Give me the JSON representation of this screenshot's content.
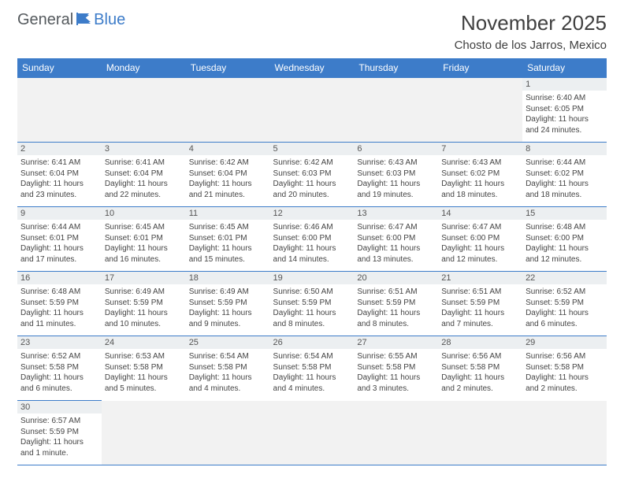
{
  "logo": {
    "general": "General",
    "blue": "Blue"
  },
  "title": "November 2025",
  "location": "Chosto de los Jarros, Mexico",
  "colors": {
    "header_bg": "#3d7cc9",
    "header_text": "#ffffff",
    "daynum_bg": "#eceff1",
    "cell_border": "#3d7cc9",
    "empty_bg": "#f2f2f2",
    "page_bg": "#ffffff",
    "body_text": "#444444",
    "logo_gray": "#555a5e",
    "logo_blue": "#3d7cc9"
  },
  "daysOfWeek": [
    "Sunday",
    "Monday",
    "Tuesday",
    "Wednesday",
    "Thursday",
    "Friday",
    "Saturday"
  ],
  "weeks": [
    [
      null,
      null,
      null,
      null,
      null,
      null,
      {
        "n": "1",
        "sunrise": "Sunrise: 6:40 AM",
        "sunset": "Sunset: 6:05 PM",
        "daylight": "Daylight: 11 hours and 24 minutes."
      }
    ],
    [
      {
        "n": "2",
        "sunrise": "Sunrise: 6:41 AM",
        "sunset": "Sunset: 6:04 PM",
        "daylight": "Daylight: 11 hours and 23 minutes."
      },
      {
        "n": "3",
        "sunrise": "Sunrise: 6:41 AM",
        "sunset": "Sunset: 6:04 PM",
        "daylight": "Daylight: 11 hours and 22 minutes."
      },
      {
        "n": "4",
        "sunrise": "Sunrise: 6:42 AM",
        "sunset": "Sunset: 6:04 PM",
        "daylight": "Daylight: 11 hours and 21 minutes."
      },
      {
        "n": "5",
        "sunrise": "Sunrise: 6:42 AM",
        "sunset": "Sunset: 6:03 PM",
        "daylight": "Daylight: 11 hours and 20 minutes."
      },
      {
        "n": "6",
        "sunrise": "Sunrise: 6:43 AM",
        "sunset": "Sunset: 6:03 PM",
        "daylight": "Daylight: 11 hours and 19 minutes."
      },
      {
        "n": "7",
        "sunrise": "Sunrise: 6:43 AM",
        "sunset": "Sunset: 6:02 PM",
        "daylight": "Daylight: 11 hours and 18 minutes."
      },
      {
        "n": "8",
        "sunrise": "Sunrise: 6:44 AM",
        "sunset": "Sunset: 6:02 PM",
        "daylight": "Daylight: 11 hours and 18 minutes."
      }
    ],
    [
      {
        "n": "9",
        "sunrise": "Sunrise: 6:44 AM",
        "sunset": "Sunset: 6:01 PM",
        "daylight": "Daylight: 11 hours and 17 minutes."
      },
      {
        "n": "10",
        "sunrise": "Sunrise: 6:45 AM",
        "sunset": "Sunset: 6:01 PM",
        "daylight": "Daylight: 11 hours and 16 minutes."
      },
      {
        "n": "11",
        "sunrise": "Sunrise: 6:45 AM",
        "sunset": "Sunset: 6:01 PM",
        "daylight": "Daylight: 11 hours and 15 minutes."
      },
      {
        "n": "12",
        "sunrise": "Sunrise: 6:46 AM",
        "sunset": "Sunset: 6:00 PM",
        "daylight": "Daylight: 11 hours and 14 minutes."
      },
      {
        "n": "13",
        "sunrise": "Sunrise: 6:47 AM",
        "sunset": "Sunset: 6:00 PM",
        "daylight": "Daylight: 11 hours and 13 minutes."
      },
      {
        "n": "14",
        "sunrise": "Sunrise: 6:47 AM",
        "sunset": "Sunset: 6:00 PM",
        "daylight": "Daylight: 11 hours and 12 minutes."
      },
      {
        "n": "15",
        "sunrise": "Sunrise: 6:48 AM",
        "sunset": "Sunset: 6:00 PM",
        "daylight": "Daylight: 11 hours and 12 minutes."
      }
    ],
    [
      {
        "n": "16",
        "sunrise": "Sunrise: 6:48 AM",
        "sunset": "Sunset: 5:59 PM",
        "daylight": "Daylight: 11 hours and 11 minutes."
      },
      {
        "n": "17",
        "sunrise": "Sunrise: 6:49 AM",
        "sunset": "Sunset: 5:59 PM",
        "daylight": "Daylight: 11 hours and 10 minutes."
      },
      {
        "n": "18",
        "sunrise": "Sunrise: 6:49 AM",
        "sunset": "Sunset: 5:59 PM",
        "daylight": "Daylight: 11 hours and 9 minutes."
      },
      {
        "n": "19",
        "sunrise": "Sunrise: 6:50 AM",
        "sunset": "Sunset: 5:59 PM",
        "daylight": "Daylight: 11 hours and 8 minutes."
      },
      {
        "n": "20",
        "sunrise": "Sunrise: 6:51 AM",
        "sunset": "Sunset: 5:59 PM",
        "daylight": "Daylight: 11 hours and 8 minutes."
      },
      {
        "n": "21",
        "sunrise": "Sunrise: 6:51 AM",
        "sunset": "Sunset: 5:59 PM",
        "daylight": "Daylight: 11 hours and 7 minutes."
      },
      {
        "n": "22",
        "sunrise": "Sunrise: 6:52 AM",
        "sunset": "Sunset: 5:59 PM",
        "daylight": "Daylight: 11 hours and 6 minutes."
      }
    ],
    [
      {
        "n": "23",
        "sunrise": "Sunrise: 6:52 AM",
        "sunset": "Sunset: 5:58 PM",
        "daylight": "Daylight: 11 hours and 6 minutes."
      },
      {
        "n": "24",
        "sunrise": "Sunrise: 6:53 AM",
        "sunset": "Sunset: 5:58 PM",
        "daylight": "Daylight: 11 hours and 5 minutes."
      },
      {
        "n": "25",
        "sunrise": "Sunrise: 6:54 AM",
        "sunset": "Sunset: 5:58 PM",
        "daylight": "Daylight: 11 hours and 4 minutes."
      },
      {
        "n": "26",
        "sunrise": "Sunrise: 6:54 AM",
        "sunset": "Sunset: 5:58 PM",
        "daylight": "Daylight: 11 hours and 4 minutes."
      },
      {
        "n": "27",
        "sunrise": "Sunrise: 6:55 AM",
        "sunset": "Sunset: 5:58 PM",
        "daylight": "Daylight: 11 hours and 3 minutes."
      },
      {
        "n": "28",
        "sunrise": "Sunrise: 6:56 AM",
        "sunset": "Sunset: 5:58 PM",
        "daylight": "Daylight: 11 hours and 2 minutes."
      },
      {
        "n": "29",
        "sunrise": "Sunrise: 6:56 AM",
        "sunset": "Sunset: 5:58 PM",
        "daylight": "Daylight: 11 hours and 2 minutes."
      }
    ],
    [
      {
        "n": "30",
        "sunrise": "Sunrise: 6:57 AM",
        "sunset": "Sunset: 5:59 PM",
        "daylight": "Daylight: 11 hours and 1 minute."
      },
      null,
      null,
      null,
      null,
      null,
      null
    ]
  ]
}
